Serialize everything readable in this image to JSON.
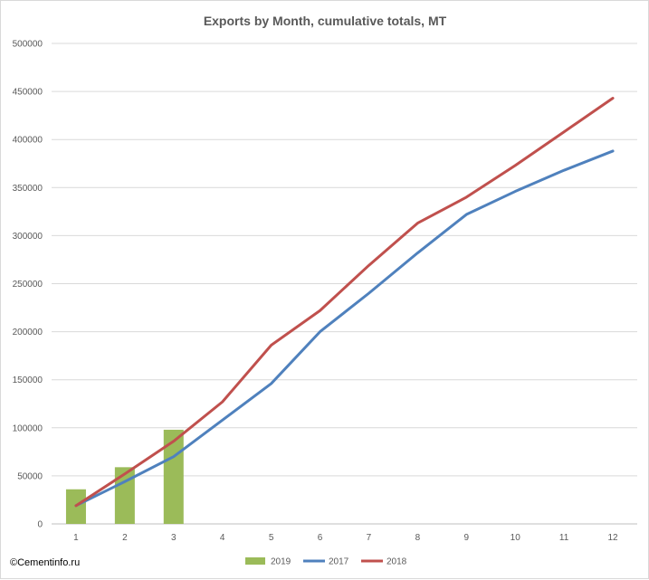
{
  "chart_data": {
    "type": "bar+line",
    "title": "Exports by Month, cumulative totals, MT",
    "categories": [
      "1",
      "2",
      "3",
      "4",
      "5",
      "6",
      "7",
      "8",
      "9",
      "10",
      "11",
      "12"
    ],
    "ylim": [
      0,
      500000
    ],
    "yticks": [
      "0",
      "50000",
      "100000",
      "150000",
      "200000",
      "250000",
      "300000",
      "350000",
      "400000",
      "450000",
      "500000"
    ],
    "grid": true,
    "legend_position": "bottom",
    "series": [
      {
        "name": "2019",
        "type": "bar",
        "color": "#9bbb59",
        "values": [
          36000,
          59000,
          98000,
          null,
          null,
          null,
          null,
          null,
          null,
          null,
          null,
          null
        ]
      },
      {
        "name": "2017",
        "type": "line",
        "color": "#4f81bd",
        "values": [
          19000,
          44000,
          70000,
          108000,
          146000,
          200000,
          240000,
          282000,
          322000,
          346000,
          368000,
          388000
        ]
      },
      {
        "name": "2018",
        "type": "line",
        "color": "#c0504d",
        "values": [
          19000,
          52000,
          86000,
          127000,
          186000,
          222000,
          269000,
          313000,
          340000,
          373000,
          408000,
          443000
        ]
      }
    ],
    "copyright": "©Cementinfo.ru"
  }
}
